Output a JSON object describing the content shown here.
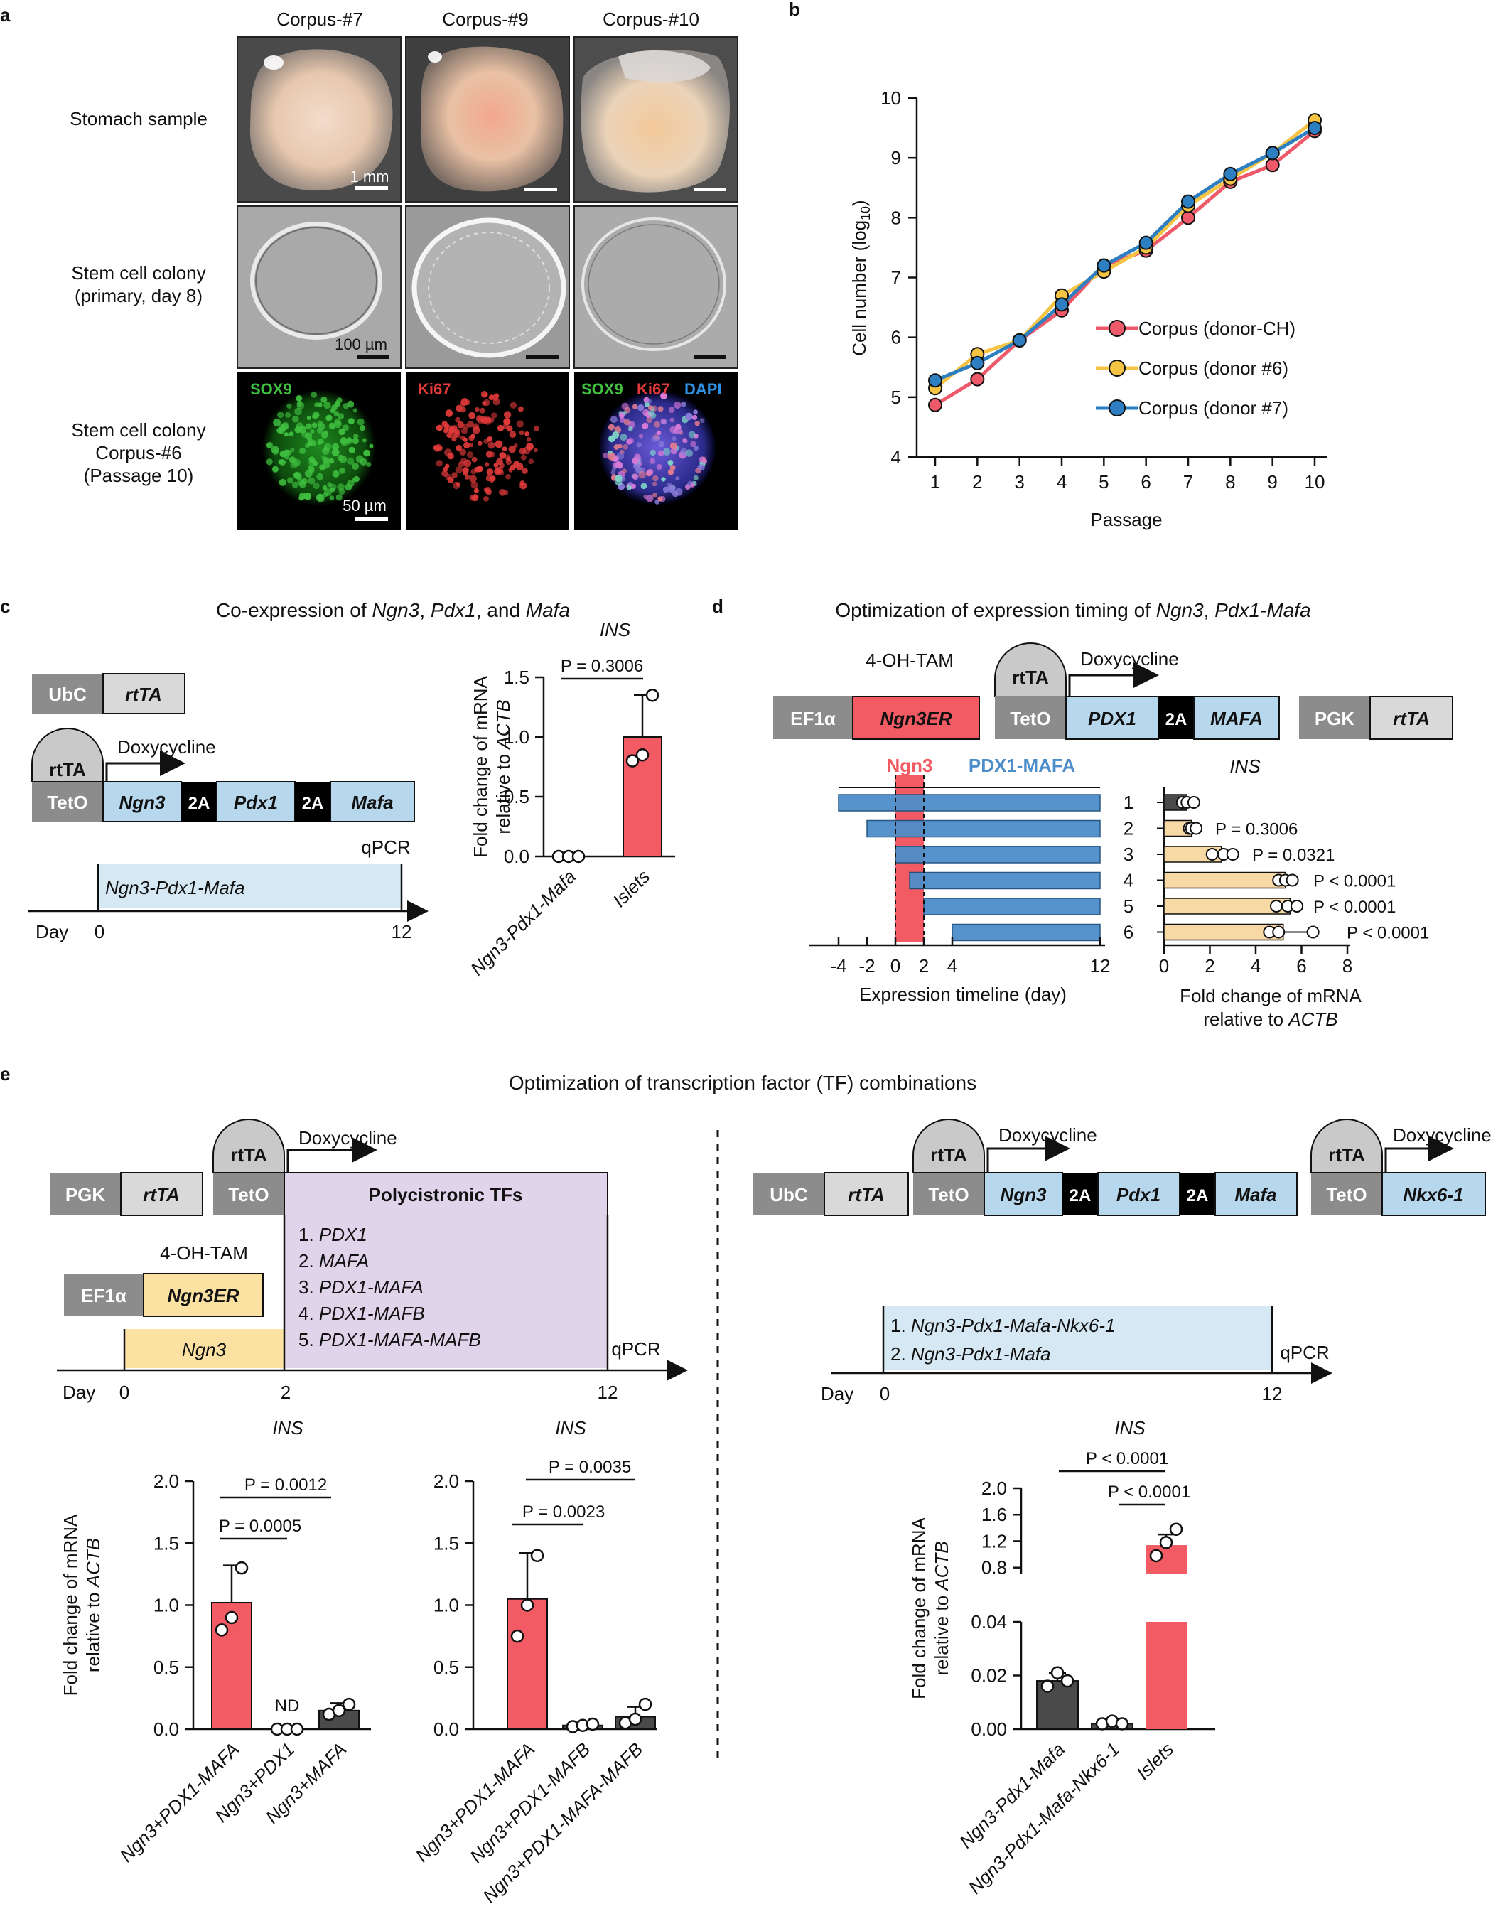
{
  "panel_letters": {
    "a": "a",
    "b": "b",
    "c": "c",
    "d": "d",
    "e": "e"
  },
  "panel_a": {
    "col_headers": [
      "Corpus-#7",
      "Corpus-#9",
      "Corpus-#10"
    ],
    "row1_label": "Stomach sample",
    "row2_label": [
      "Stem cell colony",
      "(primary, day 8)"
    ],
    "row3_label": [
      "Stem cell colony",
      "Corpus-#6",
      "(Passage 10)"
    ],
    "scale_1": "1 mm",
    "scale_2": "100 µm",
    "scale_3": "50 µm",
    "stain_sox9": "SOX9",
    "stain_ki67": "Ki67",
    "stain_dapi": "DAPI",
    "colors": {
      "sox9": "#3fbf3f",
      "ki67": "#e23a3a",
      "dapi": "#2f8fe0"
    }
  },
  "panel_b": {
    "chart_data": {
      "type": "line",
      "xlabel": "Passage",
      "ylabel": "Cell number (log10)",
      "x": [
        1,
        2,
        3,
        4,
        5,
        6,
        7,
        8,
        9,
        10
      ],
      "ylim": [
        4,
        10
      ],
      "yticks": [
        4,
        5,
        6,
        7,
        8,
        9,
        10
      ],
      "series": [
        {
          "name": "Corpus (donor-CH)",
          "color": "#ef5a6a",
          "values": [
            4.87,
            5.3,
            5.95,
            6.45,
            7.2,
            7.45,
            8.0,
            8.6,
            8.88,
            9.45
          ]
        },
        {
          "name": "Corpus (donor #6)",
          "color": "#f5c443",
          "values": [
            5.15,
            5.72,
            5.95,
            6.7,
            7.1,
            7.5,
            8.2,
            8.65,
            9.08,
            9.63
          ]
        },
        {
          "name": "Corpus (donor #7)",
          "color": "#2d7fc1",
          "values": [
            5.28,
            5.57,
            5.95,
            6.55,
            7.2,
            7.58,
            8.27,
            8.73,
            9.08,
            9.5
          ]
        }
      ]
    }
  },
  "panel_c": {
    "title_parts": [
      "Co-expression of ",
      "Ngn3",
      ", ",
      "Pdx1",
      ", and ",
      "Mafa"
    ],
    "constructs": {
      "ubc": "UbC",
      "rtta": "rtTA",
      "rtta_prom": "rtTA",
      "doxy": "Doxycycline",
      "teto": "TetO",
      "ngn3": "Ngn3",
      "t2a": "2A",
      "pdx1": "Pdx1",
      "mafa": "Mafa"
    },
    "timeline": {
      "bar_label": "Ngn3-Pdx1-Mafa",
      "day_label": "Day",
      "d0": "0",
      "d12": "12",
      "qpcr": "qPCR"
    },
    "chart_data": {
      "type": "bar",
      "title": "INS",
      "ylabel": "Fold change of mRNA relative to ACTB",
      "ylabel_lines": [
        "Fold change of mRNA",
        "relative to "
      ],
      "ylabel_italic": "ACTB",
      "categories": [
        "Ngn3-Pdx1-Mafa",
        "Islets"
      ],
      "values": [
        0.0,
        1.0
      ],
      "errors": [
        0.0,
        0.35
      ],
      "colors": [
        "#4a4a4a",
        "#f25b63"
      ],
      "points": [
        [
          0.0,
          0.0,
          0.0
        ],
        [
          0.8,
          0.85,
          1.35
        ]
      ],
      "ylim": [
        0,
        1.5
      ],
      "yticks": [
        "0.0",
        "0.5",
        "1.0",
        "1.5"
      ],
      "pvalue": "P = 0.3006"
    }
  },
  "panel_d": {
    "title_parts": [
      "Optimization of expression timing of ",
      "Ngn3",
      ", ",
      "Pdx1-Mafa"
    ],
    "constructs": {
      "tam": "4-OH-TAM",
      "ef1a": "EF1α",
      "ngn3er": "Ngn3ER",
      "rtta_prom": "rtTA",
      "doxy": "Doxycycline",
      "teto": "TetO",
      "pdx1": "PDX1",
      "t2a": "2A",
      "mafa": "MAFA",
      "pgk": "PGK",
      "rtta": "rtTA"
    },
    "timeline": {
      "ngn3_label": "Ngn3",
      "pm_label": "PDX1-MAFA",
      "xlabel": "Expression timeline (day)",
      "xticks": [
        "-4",
        "-2",
        "0",
        "2",
        "4",
        "12"
      ],
      "rows": [
        {
          "id": "1",
          "start": -4,
          "end": 12
        },
        {
          "id": "2",
          "start": -2,
          "end": 12
        },
        {
          "id": "3",
          "start": 0,
          "end": 12
        },
        {
          "id": "4",
          "start": 1,
          "end": 12
        },
        {
          "id": "5",
          "start": 2,
          "end": 12
        },
        {
          "id": "6",
          "start": 4,
          "end": 12
        }
      ],
      "colors": {
        "ngn3": "#f25b63",
        "pm": "#4d8dc9"
      }
    },
    "chart_data": {
      "type": "bar",
      "orientation": "horizontal",
      "title": "INS",
      "xlabel_lines": [
        "Fold change of mRNA",
        "relative to "
      ],
      "xlabel_italic": "ACTB",
      "categories": [
        "1",
        "2",
        "3",
        "4",
        "5",
        "6"
      ],
      "values": [
        1.0,
        1.2,
        2.5,
        5.3,
        5.5,
        5.2
      ],
      "errors": [
        0.2,
        0.1,
        0.6,
        0.3,
        0.3,
        1.3
      ],
      "colors": [
        "#4a4a4a",
        "#f7d9a6",
        "#f7d9a6",
        "#f7d9a6",
        "#f7d9a6",
        "#f7d9a6"
      ],
      "points": [
        [
          0.8,
          1.0,
          1.3
        ],
        [
          1.1,
          1.2,
          1.4
        ],
        [
          2.1,
          2.6,
          3.0
        ],
        [
          5.0,
          5.3,
          5.6
        ],
        [
          4.9,
          5.4,
          5.8
        ],
        [
          4.6,
          5.0,
          6.5
        ]
      ],
      "pvalues": [
        "",
        "P = 0.3006",
        "P = 0.0321",
        "P < 0.0001",
        "P < 0.0001",
        "P < 0.0001"
      ],
      "xlim": [
        0,
        8
      ],
      "xticks": [
        "0",
        "2",
        "4",
        "6",
        "8"
      ]
    }
  },
  "panel_e": {
    "title": "Optimization of transcription factor (TF) combinations",
    "left_constructs": {
      "pgk": "PGK",
      "rtta": "rtTA",
      "rtta_prom": "rtTA",
      "doxy": "Doxycycline",
      "teto": "TetO",
      "poly": "Polycistronic TFs",
      "tam": "4-OH-TAM",
      "ef1a": "EF1α",
      "ngn3er": "Ngn3ER"
    },
    "tf_list": [
      {
        "num": "1. ",
        "name": "PDX1"
      },
      {
        "num": "2. ",
        "name": "MAFA"
      },
      {
        "num": "3. ",
        "name": "PDX1-MAFA"
      },
      {
        "num": "4. ",
        "name": "PDX1-MAFB"
      },
      {
        "num": "5. ",
        "name": "PDX1-MAFA-MAFB"
      }
    ],
    "left_timeline": {
      "ngn3": "Ngn3",
      "day": "Day",
      "d0": "0",
      "d2": "2",
      "d12": "12",
      "qpcr": "qPCR"
    },
    "right_constructs": {
      "ubc": "UbC",
      "rtta": "rtTA",
      "rtta_prom1": "rtTA",
      "doxy1": "Doxycycline",
      "teto1": "TetO",
      "ngn3": "Ngn3",
      "t2a": "2A",
      "pdx1": "Pdx1",
      "mafa": "Mafa",
      "rtta_prom2": "rtTA",
      "doxy2": "Doxycycline",
      "teto2": "TetO",
      "nkx": "Nkx6-1"
    },
    "right_timeline": {
      "item1_num": "1. ",
      "item1": "Ngn3-Pdx1-Mafa-Nkx6-1",
      "item2_num": "2. ",
      "item2": "Ngn3-Pdx1-Mafa",
      "day": "Day",
      "d0": "0",
      "d12": "12",
      "qpcr": "qPCR"
    },
    "ylabel_lines": [
      "Fold change of mRNA",
      "relative to "
    ],
    "ylabel_italic": "ACTB",
    "chart_data": [
      {
        "type": "bar",
        "title": "INS",
        "categories": [
          "Ngn3+PDX1-MAFA",
          "Ngn3+PDX1",
          "Ngn3+MAFA"
        ],
        "values": [
          1.02,
          0.0,
          0.15
        ],
        "errors": [
          0.3,
          0.0,
          0.06
        ],
        "colors": [
          "#f25b63",
          "#4a4a4a",
          "#4a4a4a"
        ],
        "points": [
          [
            0.8,
            0.9,
            1.3
          ],
          [
            0.0,
            0.0,
            0.0
          ],
          [
            0.12,
            0.15,
            0.2
          ]
        ],
        "ylim": [
          0,
          2.0
        ],
        "yticks": [
          "0.0",
          "0.5",
          "1.0",
          "1.5",
          "2.0"
        ],
        "annotation": "ND",
        "pvalues": [
          {
            "label": "P = 0.0005",
            "from": 0,
            "to": 1
          },
          {
            "label": "P = 0.0012",
            "from": 0,
            "to": 2
          }
        ]
      },
      {
        "type": "bar",
        "title": "INS",
        "categories": [
          "Ngn3+PDX1-MAFA",
          "Ngn3+PDX1-MAFB",
          "Ngn3+PDX1-MAFA-MAFB"
        ],
        "values": [
          1.05,
          0.03,
          0.1
        ],
        "errors": [
          0.37,
          0.02,
          0.08
        ],
        "colors": [
          "#f25b63",
          "#4a4a4a",
          "#4a4a4a"
        ],
        "points": [
          [
            0.75,
            1.0,
            1.4
          ],
          [
            0.02,
            0.03,
            0.04
          ],
          [
            0.05,
            0.08,
            0.2
          ]
        ],
        "ylim": [
          0,
          2.0
        ],
        "yticks": [
          "0.0",
          "0.5",
          "1.0",
          "1.5",
          "2.0"
        ],
        "pvalues": [
          {
            "label": "P = 0.0023",
            "from": 0,
            "to": 1
          },
          {
            "label": "P = 0.0035",
            "from": 0,
            "to": 2
          }
        ]
      },
      {
        "type": "bar",
        "title": "INS",
        "categories": [
          "Ngn3-Pdx1-Mafa",
          "Ngn3-Pdx1-Mafa-Nkx6-1",
          "Islets"
        ],
        "values": [
          0.018,
          0.002,
          1.14
        ],
        "errors": [
          0.003,
          0.001,
          0.16
        ],
        "colors": [
          "#4a4a4a",
          "#4a4a4a",
          "#f25b63"
        ],
        "points": [
          [
            0.016,
            0.021,
            0.018
          ],
          [
            0.002,
            0.003,
            0.002
          ],
          [
            0.98,
            1.18,
            1.38
          ]
        ],
        "broken_axis": true,
        "lower_ylim": [
          0,
          0.04
        ],
        "lower_yticks": [
          "0.00",
          "0.02",
          "0.04"
        ],
        "upper_ylim": [
          0.7,
          2.0
        ],
        "upper_yticks": [
          "0.8",
          "1.2",
          "1.6",
          "2.0"
        ],
        "pvalues": [
          {
            "label": "P < 0.0001",
            "from": 1,
            "to": 2
          },
          {
            "label": "P < 0.0001",
            "from": 0,
            "to": 2
          }
        ]
      }
    ]
  }
}
